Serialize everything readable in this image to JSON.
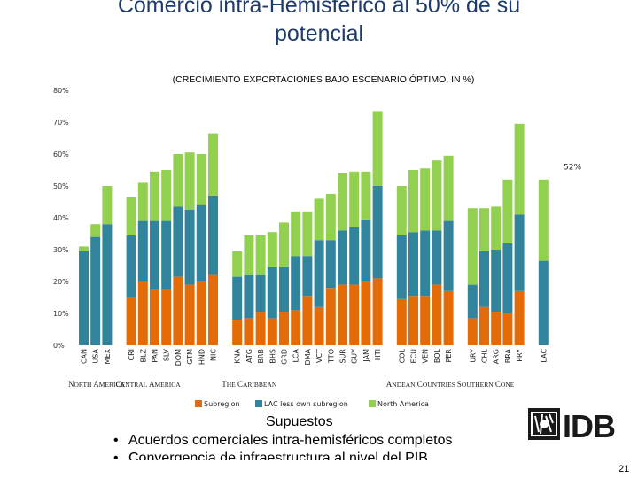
{
  "slide": {
    "title_line1": "Comercio intra-Hemisférico al 50% de su",
    "title_line2": "potencial",
    "supuestos": "Supuestos",
    "bullets": [
      "Acuerdos comerciales intra-hemisféricos completos",
      "Convergencia de infraestructura al nivel del PIB"
    ],
    "page_number": "21",
    "logo_text": "IDB"
  },
  "colors": {
    "subregion": "#e36c09",
    "lac_less_own": "#31849b",
    "north_america": "#92d050",
    "title": "#1f3b6b"
  },
  "chart_data": {
    "type": "bar",
    "stacked": true,
    "title": "(CRECIMIENTO EXPORTACIONES BAJO ESCENARIO ÓPTIMO, IN %)",
    "ylim": [
      0,
      80
    ],
    "yticks": [
      "0%",
      "10%",
      "20%",
      "30%",
      "40%",
      "50%",
      "60%",
      "70%",
      "80%"
    ],
    "grid": false,
    "legend": [
      "Subregion",
      "LAC less own subregion",
      "North America"
    ],
    "annotation": "52%",
    "groups": [
      {
        "name": "NORTH AMERICA",
        "categories": [
          "CAN",
          "USA",
          "MEX"
        ]
      },
      {
        "name": "CENTRAL AMERICA",
        "categories": [
          "CRI",
          "BLZ",
          "PAN",
          "SLV",
          "DOM",
          "GTM",
          "HND",
          "NIC"
        ]
      },
      {
        "name": "THE CARIBBEAN",
        "categories": [
          "KNA",
          "ATG",
          "BRB",
          "BHS",
          "GRD",
          "LCA",
          "DMA",
          "VCT",
          "TTO",
          "SUR",
          "GUY",
          "JAM",
          "HTI"
        ]
      },
      {
        "name": "ANDEAN COUNTRIES",
        "categories": [
          "COL",
          "ECU",
          "VEN",
          "BOL",
          "PER"
        ]
      },
      {
        "name": "SOUTHERN CONE",
        "categories": [
          "URY",
          "CHL",
          "ARG",
          "BRA",
          "PRY"
        ]
      },
      {
        "name": "",
        "categories": [
          "LAC"
        ]
      }
    ],
    "series": [
      {
        "name": "Subregion",
        "values": [
          0,
          0,
          0,
          15,
          20,
          17.5,
          17.5,
          21.5,
          19,
          20,
          22,
          8,
          8.5,
          10.5,
          8.5,
          10.5,
          11,
          15.5,
          12,
          18,
          19,
          19,
          20,
          21,
          14.5,
          15.5,
          15.5,
          19,
          17,
          8.5,
          12,
          10.5,
          10,
          17,
          0
        ]
      },
      {
        "name": "LAC less own subregion",
        "values": [
          29.5,
          34,
          38,
          19.5,
          19,
          21.5,
          21.5,
          22,
          23.5,
          24,
          25,
          13.5,
          13.5,
          11.5,
          16,
          14,
          17,
          12.5,
          21,
          15,
          17,
          18,
          19.5,
          29,
          20,
          20,
          20.5,
          17,
          22,
          10.5,
          17.5,
          19.5,
          22,
          24,
          26.5
        ]
      },
      {
        "name": "North America",
        "values": [
          1.5,
          4,
          12,
          12,
          12,
          15.5,
          16,
          16.5,
          18,
          16,
          19.5,
          8,
          12.5,
          12.5,
          11,
          14,
          14,
          14,
          13,
          14.5,
          18,
          17.5,
          15,
          23.5,
          15.5,
          19.5,
          19.5,
          22,
          20.5,
          24,
          13.5,
          13.5,
          20,
          28.5,
          25.5
        ]
      }
    ]
  }
}
